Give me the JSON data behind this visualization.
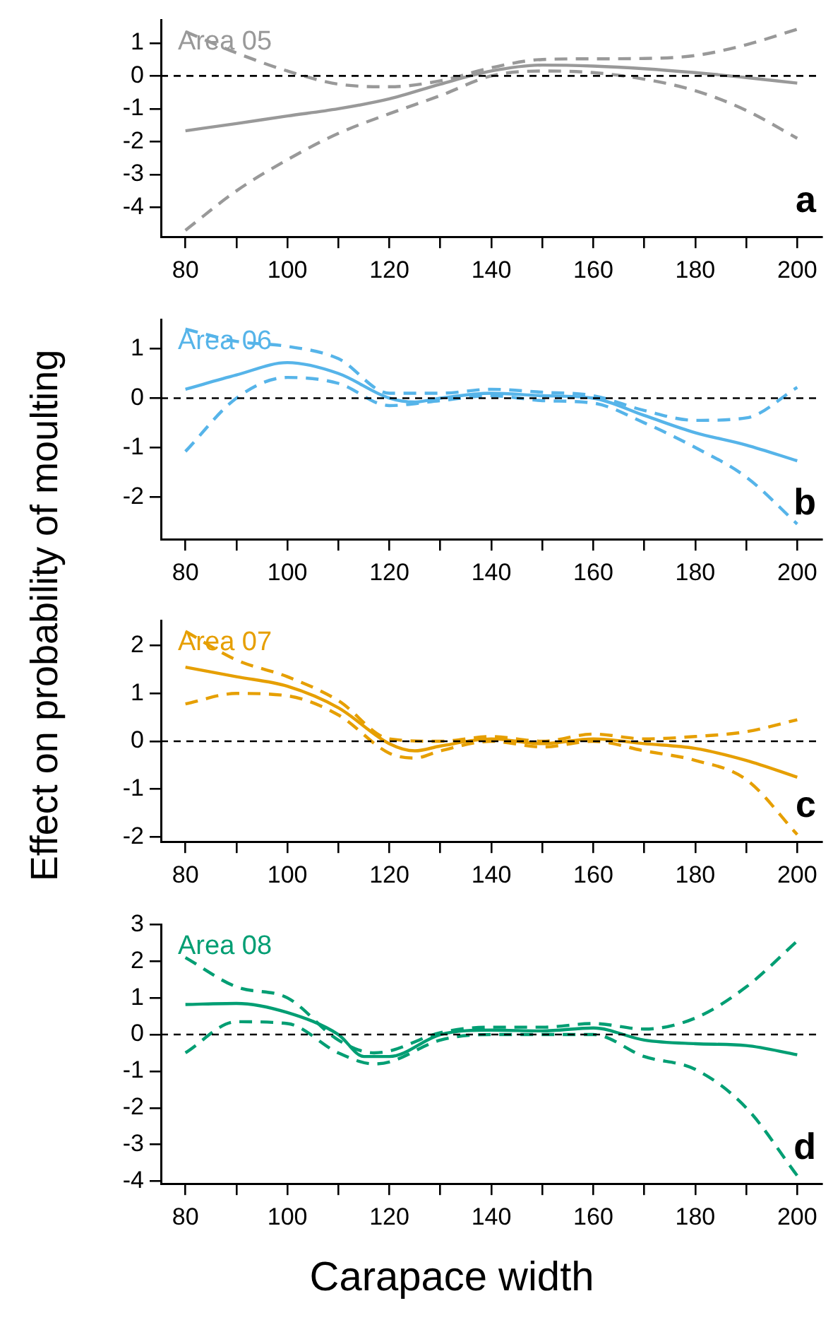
{
  "chart_data": [
    {
      "type": "line",
      "marker": "none",
      "grid": false,
      "legend": false,
      "xlim": [
        75.2,
        204.8
      ],
      "ylim": [
        -4.9,
        1.7
      ],
      "xticks": [
        80,
        {
          "value": 90,
          "label": null
        },
        100,
        {
          "value": 110,
          "label": null
        },
        120,
        {
          "value": 130,
          "label": null
        },
        140,
        {
          "value": 150,
          "label": null
        },
        160,
        {
          "value": 170,
          "label": null
        },
        180,
        {
          "value": 190,
          "label": null
        },
        200
      ],
      "yticks": [
        -4,
        -3,
        -2,
        -1,
        0,
        1
      ],
      "ref_lines": [
        {
          "axis": "y",
          "value": 0,
          "color": "#000000",
          "line_style": "dashed"
        }
      ],
      "annotations": [
        "a"
      ],
      "series": [
        {
          "name": "Area 05",
          "color": "#999999",
          "line_style": "solid",
          "x": [
            80,
            90,
            100,
            110,
            120,
            130,
            140,
            150,
            160,
            170,
            180,
            190,
            200
          ],
          "values": [
            -1.67,
            -1.45,
            -1.22,
            -1.0,
            -0.7,
            -0.25,
            0.15,
            0.33,
            0.3,
            0.22,
            0.1,
            -0.05,
            -0.22
          ]
        },
        {
          "color": "#999999",
          "line_style": "dashed",
          "x": [
            80,
            90,
            100,
            110,
            120,
            130,
            140,
            150,
            160,
            170,
            180,
            190,
            200
          ],
          "values": [
            1.35,
            0.7,
            0.15,
            -0.25,
            -0.33,
            -0.15,
            0.25,
            0.5,
            0.52,
            0.53,
            0.62,
            0.95,
            1.42
          ]
        },
        {
          "color": "#999999",
          "line_style": "dashed",
          "x": [
            80,
            90,
            100,
            110,
            120,
            130,
            140,
            150,
            160,
            170,
            180,
            190,
            200
          ],
          "values": [
            -4.7,
            -3.5,
            -2.55,
            -1.75,
            -1.15,
            -0.6,
            0.0,
            0.15,
            0.1,
            -0.1,
            -0.45,
            -1.05,
            -1.9
          ]
        }
      ]
    },
    {
      "type": "line",
      "marker": "none",
      "grid": false,
      "legend": false,
      "xlim": [
        75.2,
        204.8
      ],
      "ylim": [
        -2.86,
        1.59
      ],
      "xticks": [
        80,
        {
          "value": 90,
          "label": null
        },
        100,
        {
          "value": 110,
          "label": null
        },
        120,
        {
          "value": 130,
          "label": null
        },
        140,
        {
          "value": 150,
          "label": null
        },
        160,
        {
          "value": 170,
          "label": null
        },
        180,
        {
          "value": 190,
          "label": null
        },
        200
      ],
      "yticks": [
        -2,
        -1,
        0,
        1
      ],
      "ref_lines": [
        {
          "axis": "y",
          "value": 0,
          "color": "#000000",
          "line_style": "dashed"
        }
      ],
      "annotations": [
        "b"
      ],
      "series": [
        {
          "name": "Area 06",
          "color": "#56b4e9",
          "line_style": "solid",
          "x": [
            80,
            90,
            100,
            110,
            120,
            125,
            130,
            140,
            150,
            160,
            170,
            180,
            190,
            200
          ],
          "values": [
            0.18,
            0.47,
            0.72,
            0.5,
            0.0,
            -0.08,
            0.0,
            0.1,
            0.05,
            0.0,
            -0.35,
            -0.7,
            -0.95,
            -1.27
          ]
        },
        {
          "color": "#56b4e9",
          "line_style": "dashed",
          "x": [
            80,
            90,
            100,
            110,
            120,
            130,
            140,
            150,
            160,
            170,
            180,
            190,
            200
          ],
          "values": [
            1.4,
            1.15,
            1.05,
            0.8,
            0.1,
            0.1,
            0.18,
            0.12,
            0.05,
            -0.25,
            -0.45,
            -0.4,
            0.22
          ]
        },
        {
          "color": "#56b4e9",
          "line_style": "dashed",
          "x": [
            80,
            90,
            100,
            110,
            120,
            130,
            140,
            150,
            160,
            170,
            180,
            190,
            200
          ],
          "values": [
            -1.08,
            0.0,
            0.42,
            0.3,
            -0.15,
            -0.05,
            0.05,
            -0.05,
            -0.1,
            -0.5,
            -1.0,
            -1.6,
            -2.55
          ]
        }
      ]
    },
    {
      "type": "line",
      "marker": "none",
      "grid": false,
      "legend": false,
      "xlim": [
        75.2,
        204.8
      ],
      "ylim": [
        -2.1,
        2.52
      ],
      "xticks": [
        80,
        {
          "value": 90,
          "label": null
        },
        100,
        {
          "value": 110,
          "label": null
        },
        120,
        {
          "value": 130,
          "label": null
        },
        140,
        {
          "value": 150,
          "label": null
        },
        160,
        {
          "value": 170,
          "label": null
        },
        180,
        {
          "value": 190,
          "label": null
        },
        200
      ],
      "yticks": [
        -2,
        -1,
        0,
        1,
        2
      ],
      "ref_lines": [
        {
          "axis": "y",
          "value": 0,
          "color": "#000000",
          "line_style": "dashed"
        }
      ],
      "annotations": [
        "c"
      ],
      "series": [
        {
          "name": "Area 07",
          "color": "#e69f00",
          "line_style": "solid",
          "x": [
            80,
            90,
            100,
            110,
            120,
            125,
            130,
            140,
            150,
            160,
            170,
            180,
            190,
            200
          ],
          "values": [
            1.55,
            1.35,
            1.15,
            0.7,
            -0.05,
            -0.2,
            -0.1,
            0.05,
            -0.05,
            0.05,
            -0.05,
            -0.15,
            -0.4,
            -0.75
          ]
        },
        {
          "color": "#e69f00",
          "line_style": "dashed",
          "x": [
            80,
            90,
            100,
            110,
            120,
            130,
            140,
            150,
            160,
            170,
            180,
            190,
            200
          ],
          "values": [
            2.3,
            1.7,
            1.35,
            0.85,
            0.05,
            0.0,
            0.1,
            0.0,
            0.15,
            0.05,
            0.1,
            0.2,
            0.45
          ]
        },
        {
          "color": "#e69f00",
          "line_style": "dashed",
          "x": [
            80,
            90,
            100,
            110,
            120,
            125,
            130,
            140,
            150,
            160,
            170,
            180,
            190,
            200
          ],
          "values": [
            0.78,
            1.0,
            0.95,
            0.55,
            -0.25,
            -0.35,
            -0.2,
            0.0,
            -0.12,
            0.0,
            -0.2,
            -0.4,
            -0.8,
            -1.95
          ]
        }
      ]
    },
    {
      "type": "line",
      "marker": "none",
      "grid": false,
      "legend": false,
      "xlim": [
        75.2,
        204.8
      ],
      "ylim": [
        -4.07,
        3.0
      ],
      "xticks": [
        80,
        {
          "value": 90,
          "label": null
        },
        100,
        {
          "value": 110,
          "label": null
        },
        120,
        {
          "value": 130,
          "label": null
        },
        140,
        {
          "value": 150,
          "label": null
        },
        160,
        {
          "value": 170,
          "label": null
        },
        180,
        {
          "value": 190,
          "label": null
        },
        200
      ],
      "yticks": [
        -4,
        -3,
        -2,
        -1,
        0,
        1,
        2,
        3
      ],
      "xlabel": "Carapace width",
      "ylabel": "Effect on probability of moulting",
      "ref_lines": [
        {
          "axis": "y",
          "value": 0,
          "color": "#000000",
          "line_style": "dashed"
        }
      ],
      "annotations": [
        "d"
      ],
      "series": [
        {
          "name": "Area 08",
          "color": "#009e73",
          "line_style": "solid",
          "x": [
            80,
            90,
            100,
            110,
            115,
            120,
            130,
            140,
            150,
            160,
            170,
            180,
            190,
            200
          ],
          "values": [
            0.82,
            0.85,
            0.6,
            0.0,
            -0.6,
            -0.6,
            0.0,
            0.12,
            0.1,
            0.18,
            -0.15,
            -0.25,
            -0.3,
            -0.55
          ]
        },
        {
          "color": "#009e73",
          "line_style": "dashed",
          "x": [
            80,
            90,
            100,
            110,
            117,
            120,
            130,
            140,
            150,
            160,
            170,
            180,
            190,
            200
          ],
          "values": [
            2.1,
            1.3,
            1.0,
            -0.15,
            -0.5,
            -0.45,
            0.05,
            0.2,
            0.2,
            0.3,
            0.15,
            0.45,
            1.3,
            2.55
          ]
        },
        {
          "color": "#009e73",
          "line_style": "dashed",
          "x": [
            80,
            90,
            100,
            110,
            117,
            120,
            130,
            140,
            150,
            160,
            170,
            180,
            190,
            200
          ],
          "values": [
            -0.5,
            0.35,
            0.3,
            -0.5,
            -0.8,
            -0.75,
            -0.15,
            0.0,
            0.0,
            0.0,
            -0.6,
            -0.95,
            -2.0,
            -3.85
          ]
        }
      ]
    }
  ]
}
